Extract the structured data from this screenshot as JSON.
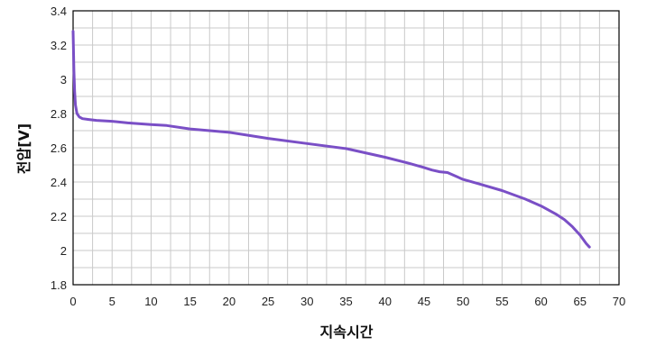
{
  "chart_data": {
    "type": "line",
    "title": "",
    "xlabel": "지속시간",
    "ylabel": "전압[V]",
    "xlim": [
      0,
      70
    ],
    "ylim": [
      1.8,
      3.4
    ],
    "x_ticks": [
      0,
      5,
      10,
      15,
      20,
      25,
      30,
      35,
      40,
      45,
      50,
      55,
      60,
      65,
      70
    ],
    "y_ticks": [
      1.8,
      2,
      2.2,
      2.4,
      2.6,
      2.8,
      3,
      3.2,
      3.4
    ],
    "y_tick_labels": [
      "1.8",
      "2",
      "2.2",
      "2.4",
      "2.6",
      "2.8",
      "3",
      "3.2",
      "3.4"
    ],
    "grid": true,
    "line_color": "#7a4fc6",
    "series": [
      {
        "x": [
          0,
          0.1,
          0.2,
          0.3,
          0.5,
          0.8,
          1.2,
          2,
          3,
          5,
          7,
          10,
          12,
          15,
          20,
          25,
          30,
          35,
          40,
          43,
          45,
          46,
          47,
          48,
          50,
          52,
          55,
          58,
          60,
          62,
          63,
          64,
          65,
          65.8,
          66.2
        ],
        "y": [
          3.28,
          3.05,
          2.93,
          2.85,
          2.8,
          2.78,
          2.77,
          2.765,
          2.76,
          2.755,
          2.745,
          2.735,
          2.73,
          2.71,
          2.69,
          2.655,
          2.625,
          2.595,
          2.545,
          2.51,
          2.485,
          2.47,
          2.46,
          2.455,
          2.415,
          2.39,
          2.35,
          2.3,
          2.26,
          2.21,
          2.18,
          2.14,
          2.09,
          2.04,
          2.02
        ]
      }
    ]
  }
}
